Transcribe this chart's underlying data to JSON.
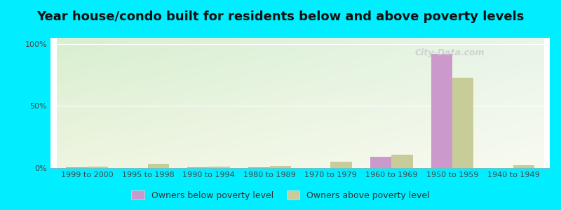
{
  "title": "Year house/condo built for residents below and above poverty levels",
  "categories": [
    "1999 to 2000",
    "1995 to 1998",
    "1990 to 1994",
    "1980 to 1989",
    "1970 to 1979",
    "1960 to 1969",
    "1950 to 1959",
    "1940 to 1949"
  ],
  "below_poverty": [
    0.5,
    0.0,
    0.5,
    0.5,
    0.0,
    9.0,
    92.0,
    0.0
  ],
  "above_poverty": [
    1.0,
    3.5,
    1.0,
    1.5,
    5.0,
    11.0,
    73.0,
    2.5
  ],
  "color_below": "#cc99cc",
  "color_above": "#c8cc99",
  "bar_width": 0.35,
  "ylim": [
    0,
    105
  ],
  "yticks": [
    0,
    50,
    100
  ],
  "ytick_labels": [
    "0%",
    "50%",
    "100%"
  ],
  "background_outer": "#00eeff",
  "bg_color_topleft": "#d8efd0",
  "bg_color_topright": "#e8f5e0",
  "bg_color_bottomleft": "#f0f5e8",
  "bg_color_bottomright": "#fafaf0",
  "legend_below": "Owners below poverty level",
  "legend_above": "Owners above poverty level",
  "title_fontsize": 13,
  "tick_fontsize": 8,
  "legend_fontsize": 9,
  "watermark": "City-Data.com"
}
